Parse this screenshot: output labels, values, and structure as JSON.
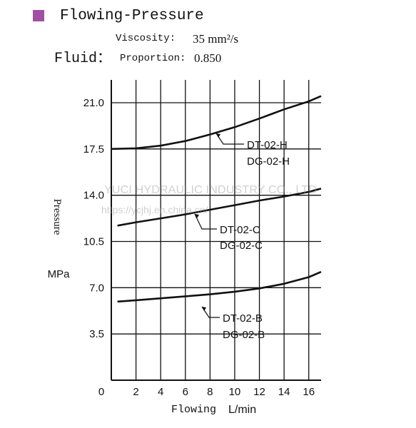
{
  "header": {
    "title": "Flowing-Pressure",
    "fluid_label": "Fluid：",
    "viscosity_label": "Viscosity:",
    "viscosity_value": "35 mm²/s",
    "proportion_label": "Proportion:",
    "proportion_value": "0.850",
    "marker_color": "#a14fa2"
  },
  "watermark": {
    "text": "YUCI HYDRAULIC INDUSTRY CO., LTD",
    "url": "https://ycjhj.en.china.cn/"
  },
  "chart_data": {
    "type": "line",
    "xlabel_left": "Flowing",
    "xlabel_right": "L/min",
    "ylabel": "Pressure",
    "yunit": "MPa",
    "xlim": [
      0,
      17
    ],
    "ylim": [
      0,
      21.0
    ],
    "x_origin_label": "0",
    "x_ticks": [
      "2",
      "4",
      "6",
      "8",
      "10",
      "12",
      "14",
      "16"
    ],
    "y_ticks": [
      "3.5",
      "7.0",
      "10.5",
      "14.0",
      "17.5",
      "21.0"
    ],
    "grid": true,
    "series": [
      {
        "name": "DT-02-H DG-02-H",
        "labels": [
          "DT-02-H",
          "DG-02-H"
        ],
        "x": [
          0,
          2,
          4,
          6,
          8,
          10,
          12,
          14,
          16,
          17
        ],
        "y": [
          17.5,
          17.55,
          17.75,
          18.1,
          18.6,
          19.15,
          19.8,
          20.5,
          21.1,
          21.5
        ]
      },
      {
        "name": "DT-02-C DG-02-C",
        "labels": [
          "DT-02-C",
          "DG-02-C"
        ],
        "x": [
          0.5,
          2,
          4,
          6,
          8,
          10,
          12,
          14,
          16,
          17
        ],
        "y": [
          11.7,
          11.95,
          12.25,
          12.55,
          12.9,
          13.25,
          13.6,
          13.9,
          14.25,
          14.5
        ]
      },
      {
        "name": "DT-02-B DG-02-B",
        "labels": [
          "DT-02-B",
          "DG-02-B"
        ],
        "x": [
          0.5,
          2,
          4,
          6,
          8,
          10,
          12,
          14,
          16,
          17
        ],
        "y": [
          5.95,
          6.05,
          6.2,
          6.35,
          6.5,
          6.7,
          6.95,
          7.3,
          7.8,
          8.2
        ]
      }
    ]
  }
}
